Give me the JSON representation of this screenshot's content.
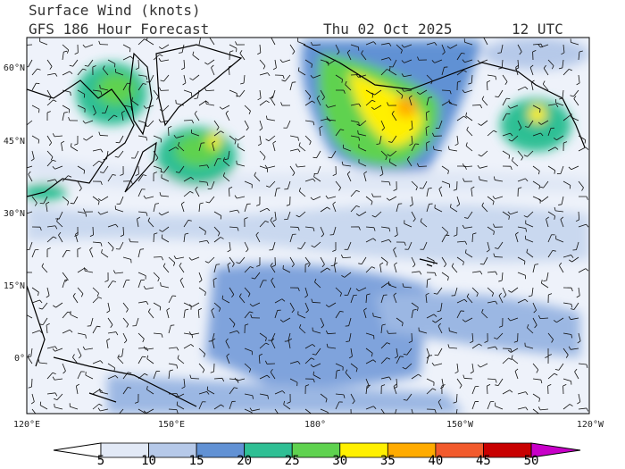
{
  "header": {
    "title": "Surface Wind (knots)",
    "subtitle": "GFS 186 Hour Forecast",
    "date": "Thu 02 Oct 2025",
    "time": "12 UTC"
  },
  "map": {
    "lat_labels": [
      "60°N",
      "45°N",
      "30°N",
      "15°N",
      "0°"
    ],
    "lon_labels": [
      "120°E",
      "150°E",
      "180°",
      "150°W",
      "120°W"
    ]
  },
  "colorbar": {
    "ticks": [
      5,
      10,
      15,
      20,
      25,
      30,
      35,
      40,
      45,
      50
    ],
    "colors": [
      "#ffffff",
      "#e2e9f6",
      "#b6c9e9",
      "#6191d4",
      "#2fbf94",
      "#5fd24f",
      "#fff000",
      "#ffab00",
      "#f25a2c",
      "#c80000",
      "#c800c8"
    ]
  }
}
